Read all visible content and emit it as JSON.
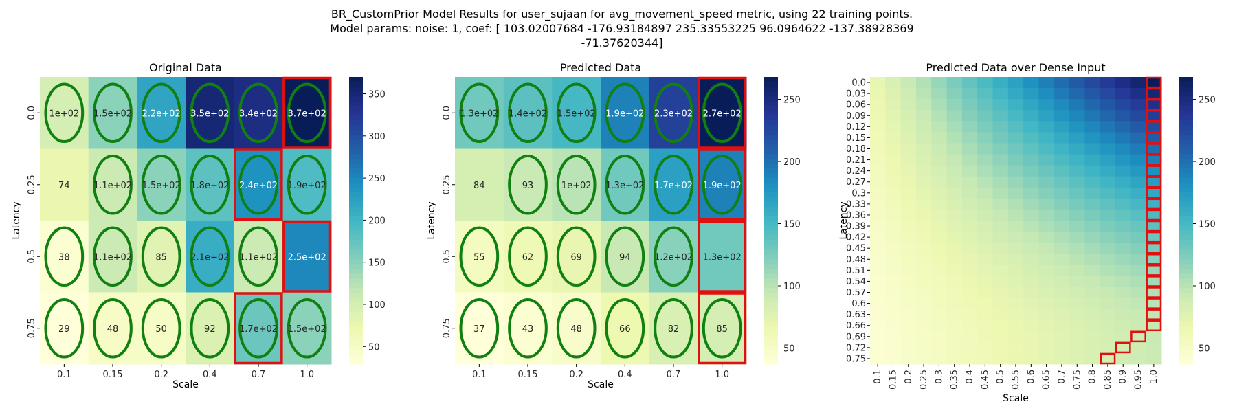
{
  "figure": {
    "title_lines": [
      "BR_CustomPrior Model Results for user_sujaan for avg_movement_speed metric, using 22 training points.",
      "Model params: noise: 1, coef: [ 103.02007684 -176.93184897  235.33553225   96.0964622  -137.38928369",
      "-71.37620344]"
    ]
  },
  "chart_data": [
    {
      "type": "heatmap",
      "title": "Original Data",
      "xlabel": "Scale",
      "ylabel": "Latency",
      "x": [
        "0.1",
        "0.15",
        "0.2",
        "0.4",
        "0.7",
        "1.0"
      ],
      "y": [
        "0.0",
        "0.25",
        "0.5",
        "0.75"
      ],
      "values": [
        [
          100,
          150,
          220,
          350,
          340,
          370
        ],
        [
          74,
          110,
          150,
          180,
          240,
          190
        ],
        [
          38,
          110,
          85,
          210,
          110,
          250
        ],
        [
          29,
          48,
          50,
          92,
          170,
          150
        ]
      ],
      "labels": [
        [
          "1e+02",
          "1.5e+02",
          "2.2e+02",
          "3.5e+02",
          "3.4e+02",
          "3.7e+02"
        ],
        [
          "74",
          "1.1e+02",
          "1.5e+02",
          "1.8e+02",
          "2.4e+02",
          "1.9e+02"
        ],
        [
          "38",
          "1.1e+02",
          "85",
          "2.1e+02",
          "1.1e+02",
          "2.5e+02"
        ],
        [
          "29",
          "48",
          "50",
          "92",
          "1.7e+02",
          "1.5e+02"
        ]
      ],
      "ellipses": [
        [
          true,
          true,
          true,
          true,
          true,
          true
        ],
        [
          false,
          true,
          true,
          true,
          true,
          true
        ],
        [
          true,
          true,
          true,
          true,
          true,
          false
        ],
        [
          true,
          true,
          true,
          true,
          true,
          true
        ]
      ],
      "red_boxes": [
        [
          0,
          5
        ],
        [
          1,
          4
        ],
        [
          2,
          5
        ],
        [
          3,
          4
        ]
      ],
      "colorbar": {
        "min": 29,
        "max": 370,
        "ticks": [
          50,
          100,
          150,
          200,
          250,
          300,
          350
        ]
      }
    },
    {
      "type": "heatmap",
      "title": "Predicted Data",
      "xlabel": "Scale",
      "ylabel": "Latency",
      "x": [
        "0.1",
        "0.15",
        "0.2",
        "0.4",
        "0.7",
        "1.0"
      ],
      "y": [
        "0.0",
        "0.25",
        "0.5",
        "0.75"
      ],
      "values": [
        [
          130,
          140,
          150,
          190,
          230,
          270
        ],
        [
          84,
          93,
          100,
          130,
          170,
          190
        ],
        [
          55,
          62,
          69,
          94,
          120,
          130
        ],
        [
          37,
          43,
          48,
          66,
          82,
          85
        ]
      ],
      "labels": [
        [
          "1.3e+02",
          "1.4e+02",
          "1.5e+02",
          "1.9e+02",
          "2.3e+02",
          "2.7e+02"
        ],
        [
          "84",
          "93",
          "1e+02",
          "1.3e+02",
          "1.7e+02",
          "1.9e+02"
        ],
        [
          "55",
          "62",
          "69",
          "94",
          "1.2e+02",
          "1.3e+02"
        ],
        [
          "37",
          "43",
          "48",
          "66",
          "82",
          "85"
        ]
      ],
      "ellipses": [
        [
          true,
          true,
          true,
          true,
          true,
          true
        ],
        [
          false,
          true,
          true,
          true,
          true,
          true
        ],
        [
          true,
          true,
          true,
          true,
          true,
          false
        ],
        [
          true,
          true,
          true,
          true,
          true,
          true
        ]
      ],
      "red_boxes": [
        [
          0,
          5
        ],
        [
          1,
          5
        ],
        [
          2,
          5
        ],
        [
          3,
          5
        ]
      ],
      "colorbar": {
        "min": 37,
        "max": 268,
        "ticks": [
          50,
          100,
          150,
          200,
          250
        ]
      }
    },
    {
      "type": "heatmap",
      "title": "Predicted Data over Dense Input",
      "xlabel": "Scale",
      "ylabel": "Latency",
      "x": [
        "0.1",
        "0.15",
        "0.2",
        "0.25",
        "0.3",
        "0.35",
        "0.4",
        "0.45",
        "0.5",
        "0.55",
        "0.6",
        "0.65",
        "0.7",
        "0.75",
        "0.8",
        "0.85",
        "0.9",
        "0.95",
        "1.0"
      ],
      "y": [
        "0.0",
        "0.03",
        "0.06",
        "0.09",
        "0.12",
        "0.15",
        "0.18",
        "0.21",
        "0.24",
        "0.27",
        "0.3",
        "0.33",
        "0.36",
        "0.39",
        "0.42",
        "0.45",
        "0.48",
        "0.51",
        "0.54",
        "0.57",
        "0.6",
        "0.63",
        "0.66",
        "0.69",
        "0.72",
        "0.75"
      ],
      "colorbar": {
        "min": 37,
        "max": 268,
        "ticks": [
          50,
          100,
          150,
          200,
          250
        ]
      }
    }
  ]
}
